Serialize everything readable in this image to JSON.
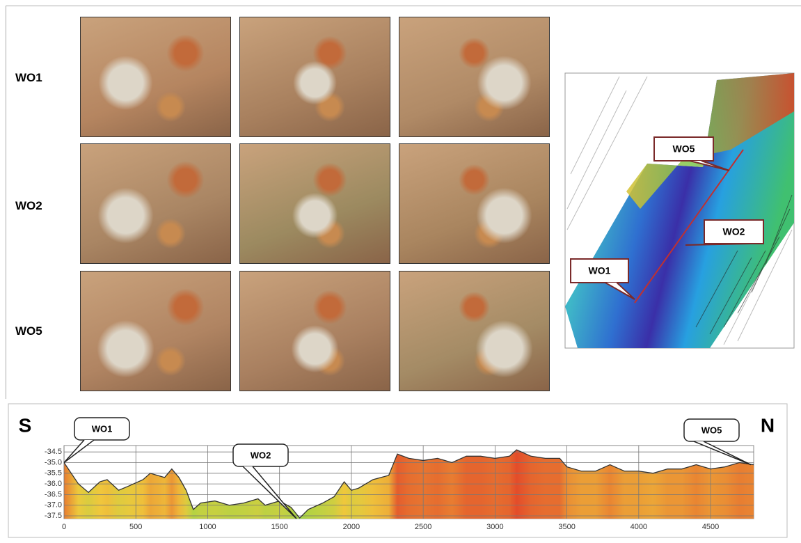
{
  "photo_grid": {
    "rows": [
      {
        "label": "WO1"
      },
      {
        "label": "WO2"
      },
      {
        "label": "WO5"
      }
    ]
  },
  "map": {
    "callouts": [
      "WO5",
      "WO2",
      "WO1"
    ]
  },
  "chart_data": {
    "type": "area",
    "left_label": "S",
    "right_label": "N",
    "annotations": [
      "WO1",
      "WO2",
      "WO5"
    ],
    "x": [
      0,
      100,
      170,
      250,
      300,
      380,
      450,
      550,
      600,
      650,
      700,
      750,
      800,
      850,
      900,
      950,
      1050,
      1150,
      1250,
      1350,
      1400,
      1500,
      1580,
      1640,
      1700,
      1800,
      1880,
      1950,
      2000,
      2050,
      2150,
      2260,
      2320,
      2400,
      2500,
      2600,
      2700,
      2800,
      2900,
      3000,
      3100,
      3150,
      3250,
      3350,
      3450,
      3500,
      3600,
      3700,
      3800,
      3900,
      4000,
      4100,
      4200,
      4300,
      4400,
      4500,
      4600,
      4700,
      4800
    ],
    "values": [
      -35.0,
      -36.0,
      -36.4,
      -35.9,
      -35.8,
      -36.3,
      -36.1,
      -35.8,
      -35.5,
      -35.6,
      -35.7,
      -35.3,
      -35.7,
      -36.3,
      -37.2,
      -36.9,
      -36.8,
      -37.0,
      -36.9,
      -36.7,
      -37.0,
      -36.8,
      -37.1,
      -37.6,
      -37.2,
      -36.9,
      -36.6,
      -35.9,
      -36.3,
      -36.2,
      -35.8,
      -35.6,
      -34.6,
      -34.8,
      -34.9,
      -34.8,
      -35.0,
      -34.7,
      -34.7,
      -34.8,
      -34.7,
      -34.4,
      -34.7,
      -34.8,
      -34.8,
      -35.2,
      -35.4,
      -35.4,
      -35.1,
      -35.4,
      -35.4,
      -35.5,
      -35.3,
      -35.3,
      -35.1,
      -35.3,
      -35.2,
      -35.0,
      -35.1
    ],
    "xlim": [
      0,
      4800
    ],
    "ylim": [
      -37.63,
      -34.2
    ],
    "xticks": [
      0,
      500,
      1000,
      1500,
      2000,
      2500,
      3000,
      3500,
      4000,
      4500
    ],
    "yticks": [
      -34.5,
      {
        "value": -35,
        "label": "-35.0"
      },
      -35.5,
      {
        "value": -36,
        "label": "-36.0"
      },
      -36.5,
      {
        "value": -37,
        "label": "-37.0"
      },
      -37.5
    ],
    "grid": true,
    "line_color": "#333333"
  }
}
